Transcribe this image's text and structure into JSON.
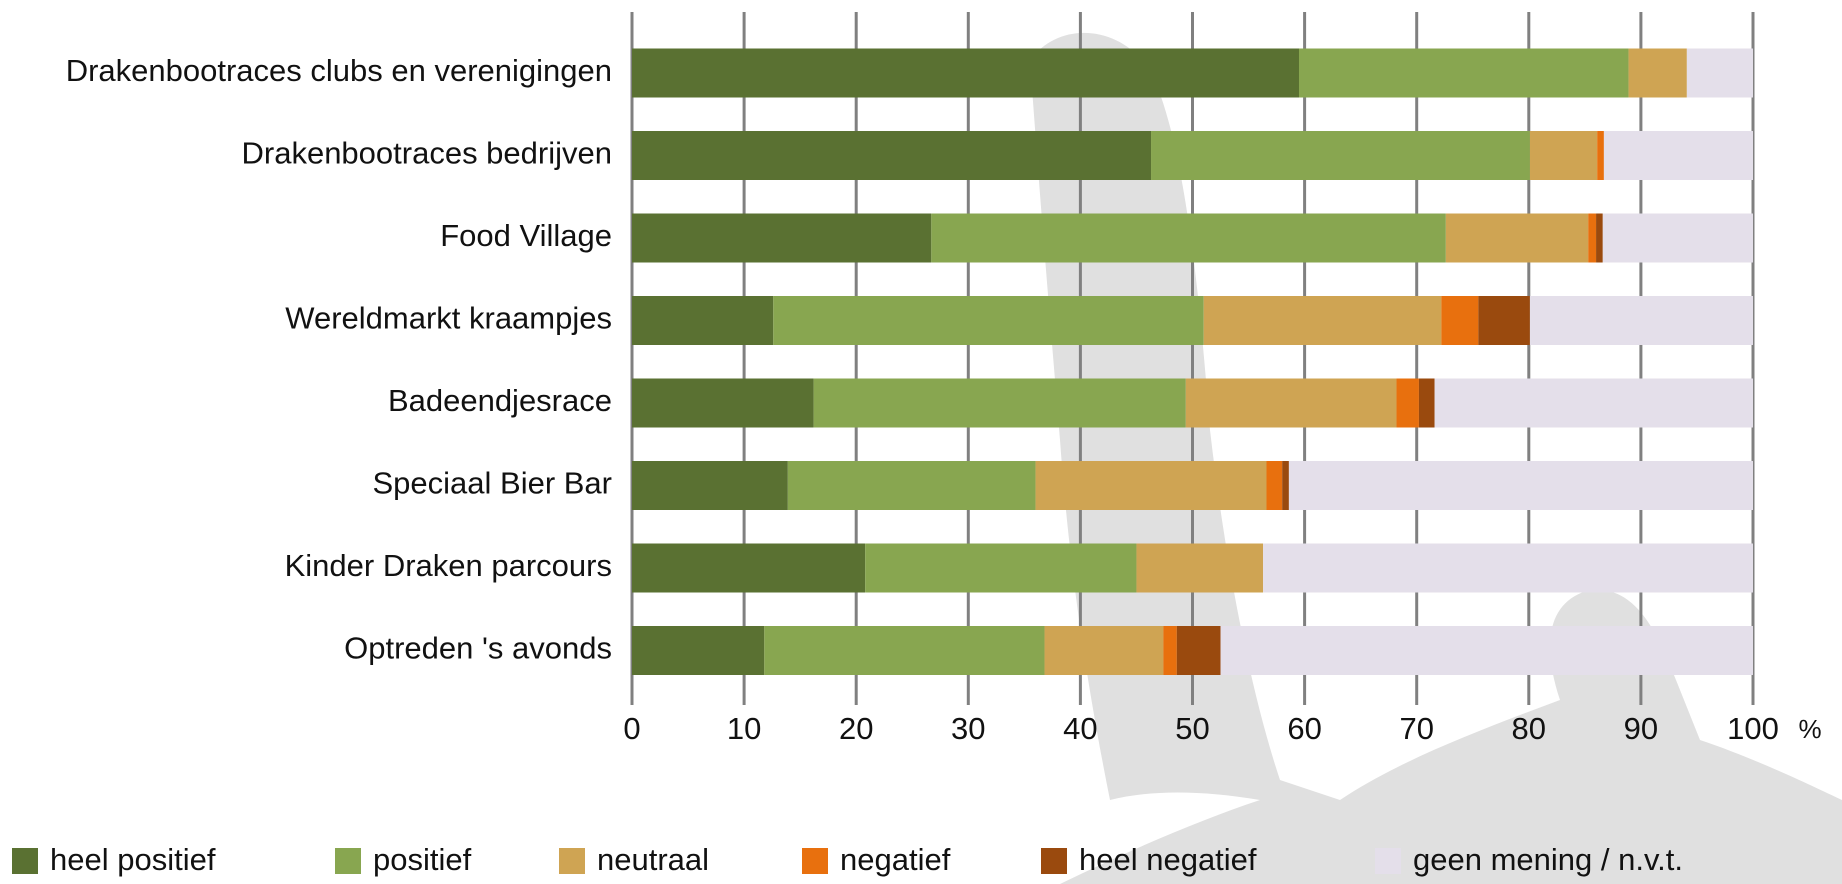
{
  "chart_data": {
    "type": "stacked-barh",
    "categories": [
      "Drakenbootraces clubs en verenigingen",
      "Drakenbootraces bedrijven",
      "Food Village",
      "Wereldmarkt kraampjes",
      "Badeendjesrace",
      "Speciaal Bier Bar",
      "Kinder Draken parcours",
      "Optreden 's avonds"
    ],
    "series": [
      {
        "name": "heel positief",
        "color": "#5a7132",
        "values": [
          59.5,
          46.3,
          26.7,
          12.6,
          16.2,
          13.9,
          20.8,
          11.8
        ]
      },
      {
        "name": "positief",
        "color": "#88a650",
        "values": [
          29.4,
          33.8,
          45.9,
          38.4,
          33.2,
          22.1,
          24.2,
          25.0
        ]
      },
      {
        "name": "neutraal",
        "color": "#cfa453",
        "values": [
          5.2,
          6.0,
          12.7,
          21.2,
          18.8,
          20.6,
          11.3,
          10.6
        ]
      },
      {
        "name": "negatief",
        "color": "#e8700e",
        "values": [
          0,
          0.6,
          0.7,
          3.3,
          2.0,
          1.4,
          0,
          1.2
        ]
      },
      {
        "name": "heel negatief",
        "color": "#9a4a0e",
        "values": [
          0,
          0,
          0.6,
          4.6,
          1.4,
          0.6,
          0,
          3.9
        ]
      },
      {
        "name": "geen mening / n.v.t.",
        "color": "#e4dfea",
        "values": [
          5.9,
          13.3,
          13.4,
          19.9,
          28.4,
          41.4,
          43.7,
          47.5
        ]
      }
    ],
    "xlim": [
      0,
      100
    ],
    "xticks": [
      0,
      10,
      20,
      30,
      40,
      50,
      60,
      70,
      80,
      90,
      100
    ],
    "x_unit": "%",
    "grid": true,
    "legend": "bottom"
  }
}
